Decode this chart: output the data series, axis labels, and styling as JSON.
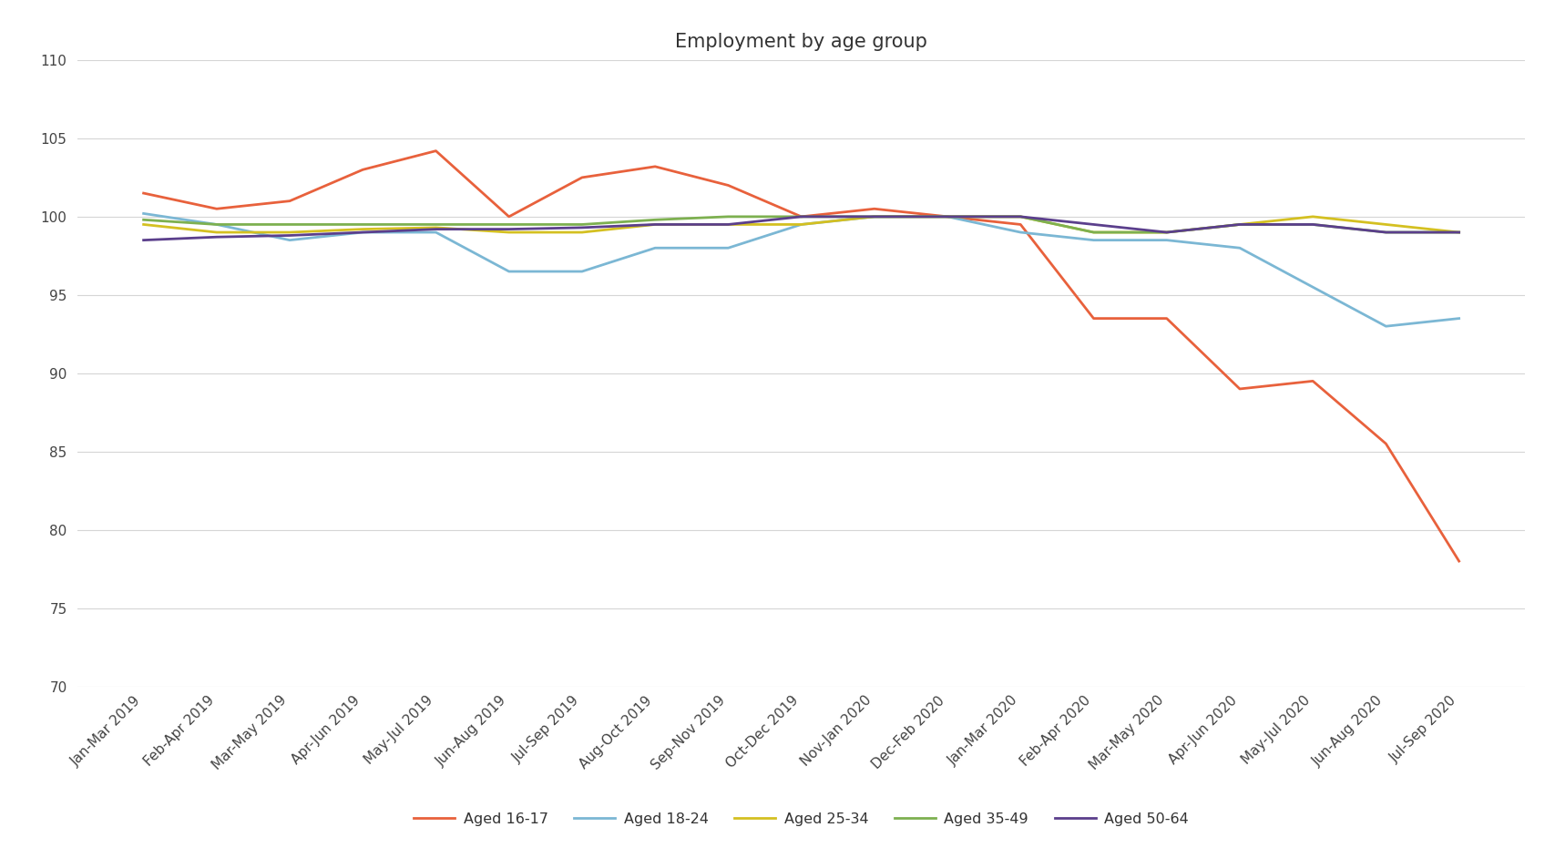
{
  "title": "Employment by age group",
  "x_labels": [
    "Jan-Mar 2019",
    "Feb-Apr 2019",
    "Mar-May 2019",
    "Apr-Jun 2019",
    "May-Jul 2019",
    "Jun-Aug 2019",
    "Jul-Sep 2019",
    "Aug-Oct 2019",
    "Sep-Nov 2019",
    "Oct-Dec 2019",
    "Nov-Jan 2020",
    "Dec-Feb 2020",
    "Jan-Mar 2020",
    "Feb-Apr 2020",
    "Mar-May 2020",
    "Apr-Jun 2020",
    "May-Jul 2020",
    "Jun-Aug 2020",
    "Jul-Sep 2020"
  ],
  "series": [
    {
      "label": "Aged 16-17",
      "color": "#E8613C",
      "values": [
        101.5,
        100.5,
        101.0,
        103.0,
        104.2,
        100.0,
        102.5,
        103.2,
        102.0,
        100.0,
        100.5,
        100.0,
        99.5,
        93.5,
        93.5,
        89.0,
        89.5,
        85.5,
        78.0
      ]
    },
    {
      "label": "Aged 18-24",
      "color": "#7BB7D4",
      "values": [
        100.2,
        99.5,
        98.5,
        99.0,
        99.0,
        96.5,
        96.5,
        98.0,
        98.0,
        99.5,
        100.0,
        100.0,
        99.0,
        98.5,
        98.5,
        98.0,
        95.5,
        93.0,
        93.5
      ]
    },
    {
      "label": "Aged 25-34",
      "color": "#D4C021",
      "values": [
        99.5,
        99.0,
        99.0,
        99.2,
        99.3,
        99.0,
        99.0,
        99.5,
        99.5,
        99.5,
        100.0,
        100.0,
        100.0,
        99.0,
        99.0,
        99.5,
        100.0,
        99.5,
        99.0
      ]
    },
    {
      "label": "Aged 35-49",
      "color": "#7DB050",
      "values": [
        99.8,
        99.5,
        99.5,
        99.5,
        99.5,
        99.5,
        99.5,
        99.8,
        100.0,
        100.0,
        100.0,
        100.0,
        100.0,
        99.0,
        99.0,
        99.5,
        99.5,
        99.0,
        99.0
      ]
    },
    {
      "label": "Aged 50-64",
      "color": "#5B3F8C",
      "values": [
        98.5,
        98.7,
        98.8,
        99.0,
        99.2,
        99.2,
        99.3,
        99.5,
        99.5,
        100.0,
        100.0,
        100.0,
        100.0,
        99.5,
        99.0,
        99.5,
        99.5,
        99.0,
        99.0
      ]
    }
  ],
  "ylim": [
    70,
    110
  ],
  "yticks": [
    70,
    75,
    80,
    85,
    90,
    95,
    100,
    105,
    110
  ],
  "background_color": "#ffffff",
  "grid_color": "#d5d5d5",
  "title_fontsize": 15,
  "tick_fontsize": 11,
  "legend_fontsize": 11.5
}
